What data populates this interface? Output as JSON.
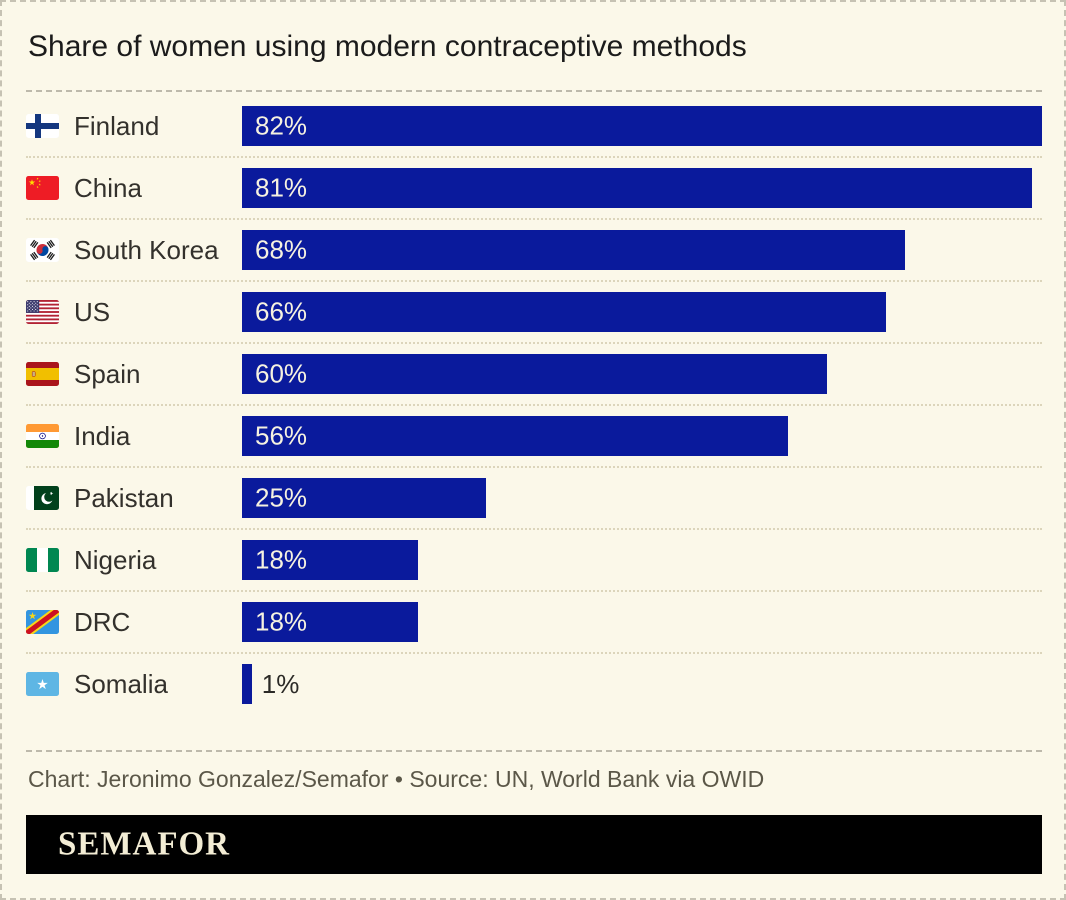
{
  "header": {
    "title": "Share of women using modern contraceptive methods"
  },
  "chart_data": {
    "type": "bar",
    "orientation": "horizontal",
    "title": "Share of women using modern contraceptive methods",
    "xlabel": "",
    "ylabel": "",
    "xlim": [
      0,
      82
    ],
    "unit": "%",
    "grid": false,
    "legend": false,
    "categories": [
      "Finland",
      "China",
      "South Korea",
      "US",
      "Spain",
      "India",
      "Pakistan",
      "Nigeria",
      "DRC",
      "Somalia"
    ],
    "values": [
      82,
      81,
      68,
      66,
      60,
      56,
      25,
      18,
      18,
      1
    ],
    "value_labels": [
      "82%",
      "81%",
      "68%",
      "66%",
      "60%",
      "56%",
      "25%",
      "18%",
      "18%",
      "1%"
    ],
    "flags": [
      "finland",
      "china",
      "south-korea",
      "us",
      "spain",
      "india",
      "pakistan",
      "nigeria",
      "drc",
      "somalia"
    ],
    "bar_color": "#0A1A9C",
    "label_inside_color": "#F6F2E0",
    "label_outside_color": "#2B2A26",
    "outside_label_threshold": 5
  },
  "footer": {
    "attribution": "Chart: Jeronimo Gonzalez/Semafor • Source: UN, World Bank via OWID",
    "brand": "SEMAFOR"
  },
  "colors": {
    "background": "#FBF8E9",
    "bar": "#0A1A9C",
    "title_text": "#1B1B1B",
    "country_text": "#33312C",
    "attribution_text": "#5B5748",
    "row_separator": "#DCD5BB",
    "section_divider": "#BDB9AB",
    "outer_border": "#C6C2B3",
    "brand_bar": "#000000",
    "brand_text": "#F3EDD5"
  }
}
